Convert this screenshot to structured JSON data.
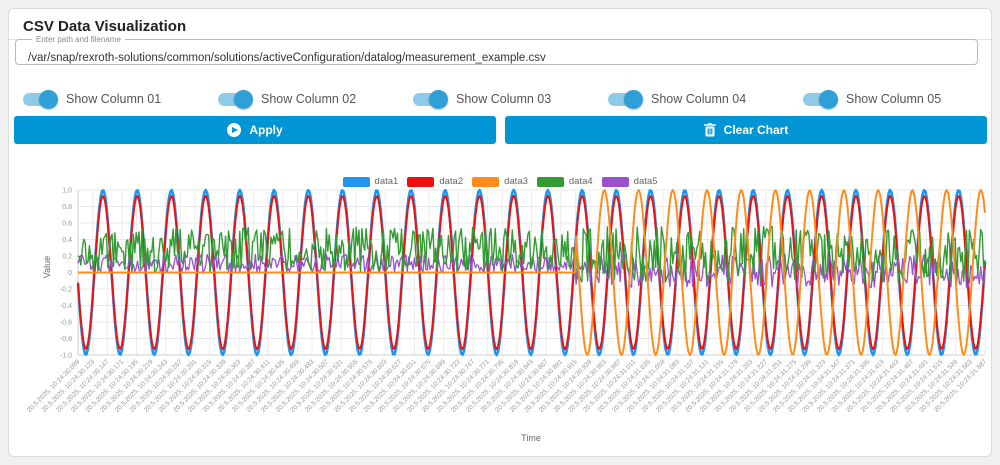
{
  "page": {
    "title": "CSV Data Visualization"
  },
  "path_input": {
    "label": "Enter path and filename",
    "value": "/var/snap/rexroth-solutions/common/solutions/activeConfiguration/datalog/measurement_example.csv"
  },
  "toggles": [
    {
      "label": "Show Column 01",
      "checked": true
    },
    {
      "label": "Show Column 02",
      "checked": true
    },
    {
      "label": "Show Column 03",
      "checked": true
    },
    {
      "label": "Show Column 04",
      "checked": true
    },
    {
      "label": "Show Column 05",
      "checked": true
    }
  ],
  "buttons": {
    "apply": {
      "label": "Apply",
      "icon": "play-circle-icon"
    },
    "clear": {
      "label": "Clear Chart",
      "icon": "trash-icon"
    }
  },
  "colors": {
    "accent_blue": "#0095d4",
    "toggle_track": "#8fcbe8",
    "toggle_knob": "#2f9fd8"
  },
  "chart_data": {
    "type": "line",
    "title": "",
    "xlabel": "Time",
    "ylabel": "Value",
    "ylim": [
      -1.0,
      1.0
    ],
    "grid": true,
    "legend_position": "top-center",
    "y_ticks": [
      "1,0",
      "0,8",
      "0,6",
      "0,4",
      "0,2",
      "0",
      "-0,2",
      "-0,4",
      "-0,6",
      "-0,8",
      "-1,0"
    ],
    "x_ticks": [
      "20.5.2025, 10:24:30.099",
      "20.5.2025, 10:24:30.123",
      "20.5.2025, 10:24:30.147",
      "20.5.2025, 10:24:30.171",
      "20.5.2025, 10:24:30.195",
      "20.5.2025, 10:24:30.219",
      "20.5.2025, 10:24:30.243",
      "20.5.2025, 10:24:30.267",
      "20.5.2025, 10:24:30.291",
      "20.5.2025, 10:24:30.315",
      "20.5.2025, 10:24:30.339",
      "20.5.2025, 10:24:30.363",
      "20.5.2025, 10:24:30.387",
      "20.5.2025, 10:24:30.411",
      "20.5.2025, 10:24:30.435",
      "20.5.2025, 10:24:30.459",
      "20.5.2025, 10:24:30.483",
      "20.5.2025, 10:24:30.507",
      "20.5.2025, 10:24:30.531",
      "20.5.2025, 10:24:30.555",
      "20.5.2025, 10:24:30.579",
      "20.5.2025, 10:24:30.603",
      "20.5.2025, 10:24:30.627",
      "20.5.2025, 10:24:30.651",
      "20.5.2025, 10:24:30.675",
      "20.5.2025, 10:24:30.699",
      "20.5.2025, 10:24:30.723",
      "20.5.2025, 10:24:30.747",
      "20.5.2025, 10:24:30.771",
      "20.5.2025, 10:24:30.795",
      "20.5.2025, 10:24:30.819",
      "20.5.2025, 10:24:30.843",
      "20.5.2025, 10:24:30.867",
      "20.5.2025, 10:24:30.891",
      "20.5.2025, 10:24:30.915",
      "20.5.2025, 10:24:30.939",
      "20.5.2025, 10:24:30.963",
      "20.5.2025, 10:24:30.987",
      "20.5.2025, 10:24:31.011",
      "20.5.2025, 10:24:31.035",
      "20.5.2025, 10:24:31.059",
      "20.5.2025, 10:24:31.083",
      "20.5.2025, 10:24:31.107",
      "20.5.2025, 10:24:31.131",
      "20.5.2025, 10:24:31.155",
      "20.5.2025, 10:24:31.179",
      "20.5.2025, 10:24:31.203",
      "20.5.2025, 10:24:31.227",
      "20.5.2025, 10:24:31.251",
      "20.5.2025, 10:24:31.275",
      "20.5.2025, 10:24:31.299",
      "20.5.2025, 10:24:31.323",
      "20.5.2025, 10:24:31.347",
      "20.5.2025, 10:24:31.371",
      "20.5.2025, 10:24:31.395",
      "20.5.2025, 10:24:31.419",
      "20.5.2025, 10:24:31.443",
      "20.5.2025, 10:24:31.467",
      "20.5.2025, 10:24:31.491",
      "20.5.2025, 10:24:31.515",
      "20.5.2025, 10:24:31.539",
      "20.5.2025, 10:24:31.563",
      "20.5.2025, 10:24:31.587"
    ],
    "series": [
      {
        "name": "data1",
        "color": "#1e96f0",
        "shape": "sine",
        "amplitude": 1.0,
        "cycles": 26.5,
        "peak_frac": 0.0275,
        "line_width": 2.6
      },
      {
        "name": "data2",
        "color": "#ee1111",
        "shape": "sine",
        "amplitude": 0.93,
        "cycles": 26.5,
        "peak_frac": 0.0275,
        "line_width": 2.0
      },
      {
        "name": "data3",
        "color": "#ff8c1a",
        "shape": "sine_after",
        "amplitude": 1.0,
        "cycles": 26.5,
        "peak_frac": 0.0143,
        "start_frac": 0.548,
        "flat_value": 0,
        "line_width": 2.0
      },
      {
        "name": "data4",
        "color": "#319c31",
        "shape": "noise",
        "range_first": [
          0,
          0.55
        ],
        "range_second": [
          -0.12,
          0.56
        ],
        "split_frac": 0.548,
        "line_width": 1.4
      },
      {
        "name": "data5",
        "color": "#9b51ce",
        "shape": "noise",
        "range_first": [
          0,
          0.22
        ],
        "range_second": [
          -0.18,
          0.22
        ],
        "split_frac": 0.548,
        "line_width": 1.3
      }
    ]
  }
}
